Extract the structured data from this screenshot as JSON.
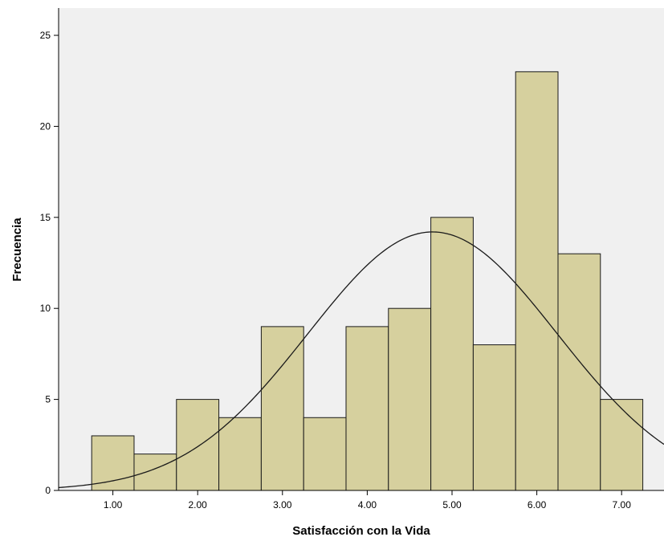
{
  "chart_data": {
    "type": "bar",
    "subtype": "histogram",
    "title": "",
    "xlabel": "Satisfacción con la Vida",
    "ylabel": "Frecuencia",
    "xlim": [
      0.36,
      7.5
    ],
    "ylim": [
      0,
      26.5
    ],
    "x_ticks": [
      1,
      2,
      3,
      4,
      5,
      6,
      7
    ],
    "x_tick_labels": [
      "1.00",
      "2.00",
      "3.00",
      "4.00",
      "5.00",
      "6.00",
      "7.00"
    ],
    "y_ticks": [
      0,
      5,
      10,
      15,
      20,
      25
    ],
    "y_tick_labels": [
      "0",
      "5",
      "10",
      "15",
      "20",
      "25"
    ],
    "bin_width": 0.5,
    "bins": [
      {
        "start": 0.75,
        "end": 1.25,
        "value": 3
      },
      {
        "start": 1.25,
        "end": 1.75,
        "value": 2
      },
      {
        "start": 1.75,
        "end": 2.25,
        "value": 5
      },
      {
        "start": 2.25,
        "end": 2.75,
        "value": 4
      },
      {
        "start": 2.75,
        "end": 3.25,
        "value": 9
      },
      {
        "start": 3.25,
        "end": 3.75,
        "value": 4
      },
      {
        "start": 3.75,
        "end": 4.25,
        "value": 9
      },
      {
        "start": 4.25,
        "end": 4.75,
        "value": 10
      },
      {
        "start": 4.75,
        "end": 5.25,
        "value": 15
      },
      {
        "start": 5.25,
        "end": 5.75,
        "value": 8
      },
      {
        "start": 5.75,
        "end": 6.25,
        "value": 23
      },
      {
        "start": 6.25,
        "end": 6.75,
        "value": 13
      },
      {
        "start": 6.75,
        "end": 7.25,
        "value": 5
      }
    ],
    "normal_curve": {
      "mean": 4.77,
      "sd": 1.47,
      "peak": 14.2
    },
    "grid": false,
    "legend": "none",
    "colors": {
      "bar_fill": "#d6d09e",
      "bar_stroke": "#1a1a1a",
      "plot_background": "#f0f0f0",
      "curve": "#1a1a1a"
    }
  }
}
